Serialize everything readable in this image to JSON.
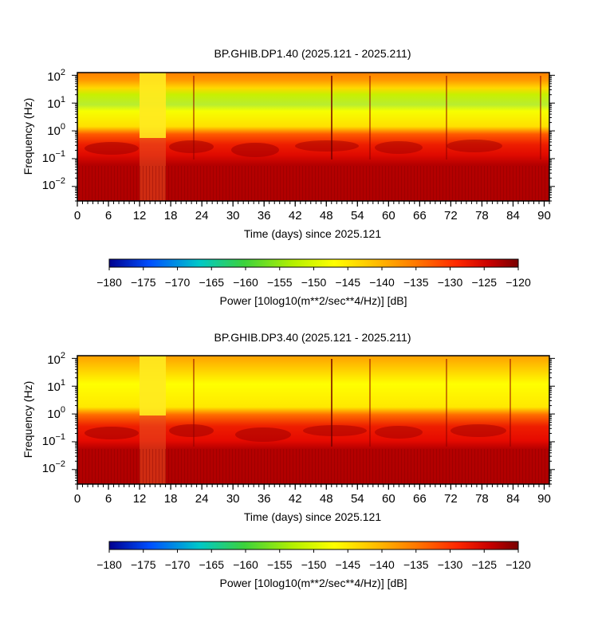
{
  "colorbar": {
    "ticks": [
      "−180",
      "−175",
      "−170",
      "−165",
      "−160",
      "−155",
      "−150",
      "−145",
      "−140",
      "−135",
      "−130",
      "−125",
      "−120"
    ],
    "range": [
      -180,
      -120
    ],
    "label": "Power [10log10(m**2/sec**4/Hz)] [dB]",
    "colors": [
      "#00008f",
      "#0050ff",
      "#00c8c8",
      "#3cd23c",
      "#b4f000",
      "#ffff00",
      "#ffbe00",
      "#ff7800",
      "#ff2800",
      "#c80000",
      "#780000"
    ]
  },
  "chart_data": [
    {
      "type": "heatmap",
      "title": "BP.GHIB.DP1.40 (2025.121 - 2025.211)",
      "xlabel": "Time (days) since 2025.121",
      "ylabel": "Frequency (Hz)",
      "xlim": [
        0,
        91
      ],
      "ylim": [
        0.003,
        125
      ],
      "yscale": "log",
      "x_ticks": [
        "0",
        "6",
        "12",
        "18",
        "24",
        "30",
        "36",
        "42",
        "48",
        "54",
        "60",
        "66",
        "72",
        "78",
        "84",
        "90"
      ],
      "y_ticks": [
        {
          "base": "10",
          "exp": "2"
        },
        {
          "base": "10",
          "exp": "1"
        },
        {
          "base": "10",
          "exp": "0"
        },
        {
          "base": "10",
          "exp": "−1"
        },
        {
          "base": "10",
          "exp": "−2"
        }
      ],
      "data_gap_days": [
        12,
        17
      ],
      "bands": [
        {
          "freq_range": [
            0.003,
            0.05
          ],
          "power_db": -122
        },
        {
          "freq_range": [
            0.05,
            0.3
          ],
          "power_db": -127
        },
        {
          "freq_range": [
            0.3,
            1.5
          ],
          "power_db": -138
        },
        {
          "freq_range": [
            1.5,
            5
          ],
          "power_db": -150
        },
        {
          "freq_range": [
            5,
            25
          ],
          "power_db": -158
        },
        {
          "freq_range": [
            25,
            50
          ],
          "power_db": -148
        },
        {
          "freq_range": [
            50,
            100
          ],
          "power_db": -138
        }
      ]
    },
    {
      "type": "heatmap",
      "title": "BP.GHIB.DP3.40 (2025.121 - 2025.211)",
      "xlabel": "Time (days) since 2025.121",
      "ylabel": "Frequency (Hz)",
      "xlim": [
        0,
        91
      ],
      "ylim": [
        0.003,
        125
      ],
      "yscale": "log",
      "x_ticks": [
        "0",
        "6",
        "12",
        "18",
        "24",
        "30",
        "36",
        "42",
        "48",
        "54",
        "60",
        "66",
        "72",
        "78",
        "84",
        "90"
      ],
      "y_ticks": [
        {
          "base": "10",
          "exp": "2"
        },
        {
          "base": "10",
          "exp": "1"
        },
        {
          "base": "10",
          "exp": "0"
        },
        {
          "base": "10",
          "exp": "−1"
        },
        {
          "base": "10",
          "exp": "−2"
        }
      ],
      "data_gap_days": [
        12,
        17
      ],
      "bands": [
        {
          "freq_range": [
            0.003,
            0.05
          ],
          "power_db": -122
        },
        {
          "freq_range": [
            0.05,
            0.3
          ],
          "power_db": -127
        },
        {
          "freq_range": [
            0.3,
            1.5
          ],
          "power_db": -140
        },
        {
          "freq_range": [
            1.5,
            20
          ],
          "power_db": -150
        },
        {
          "freq_range": [
            20,
            100
          ],
          "power_db": -145
        }
      ]
    }
  ]
}
